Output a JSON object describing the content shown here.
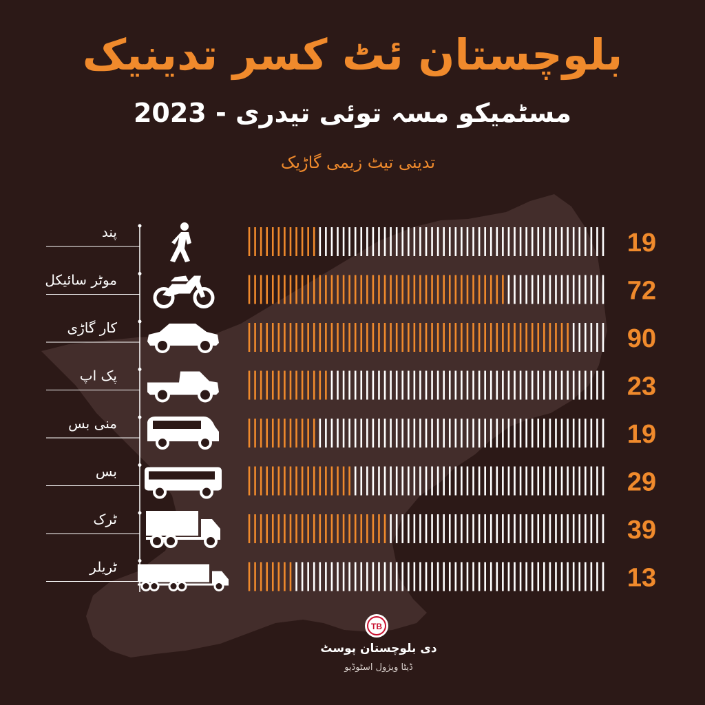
{
  "colors": {
    "background": "#2c1917",
    "accent": "#f08a2c",
    "bar_empty": "#ffffff",
    "map_shape": "#432d2b"
  },
  "header": {
    "title": "بلوچستان ئٹ کسر تدینیک",
    "subtitle": "مسٹمیکو مسہ توئی تیدری - 2023",
    "caption": "تدینی تیٹ زیمی گاڑیک"
  },
  "footer": {
    "brand": "دی بلوچستان پوسٹ",
    "studio": "ڈیٹا ویژول اسٹوڈیو",
    "logo_icon": "tbp-logo-icon"
  },
  "chart_data": {
    "type": "bar",
    "orientation": "horizontal",
    "categories": [
      "پند",
      "موٹر سائیکل",
      "کار گاڑی",
      "پک اپ",
      "منی بس",
      "بس",
      "ٹرک",
      "ٹریلر"
    ],
    "icons": [
      "pedestrian-icon",
      "motorcycle-icon",
      "car-icon",
      "pickup-truck-icon",
      "minibus-icon",
      "bus-icon",
      "truck-icon",
      "trailer-truck-icon"
    ],
    "values": [
      19,
      72,
      90,
      23,
      19,
      29,
      39,
      13
    ],
    "scale_max": 100
  }
}
